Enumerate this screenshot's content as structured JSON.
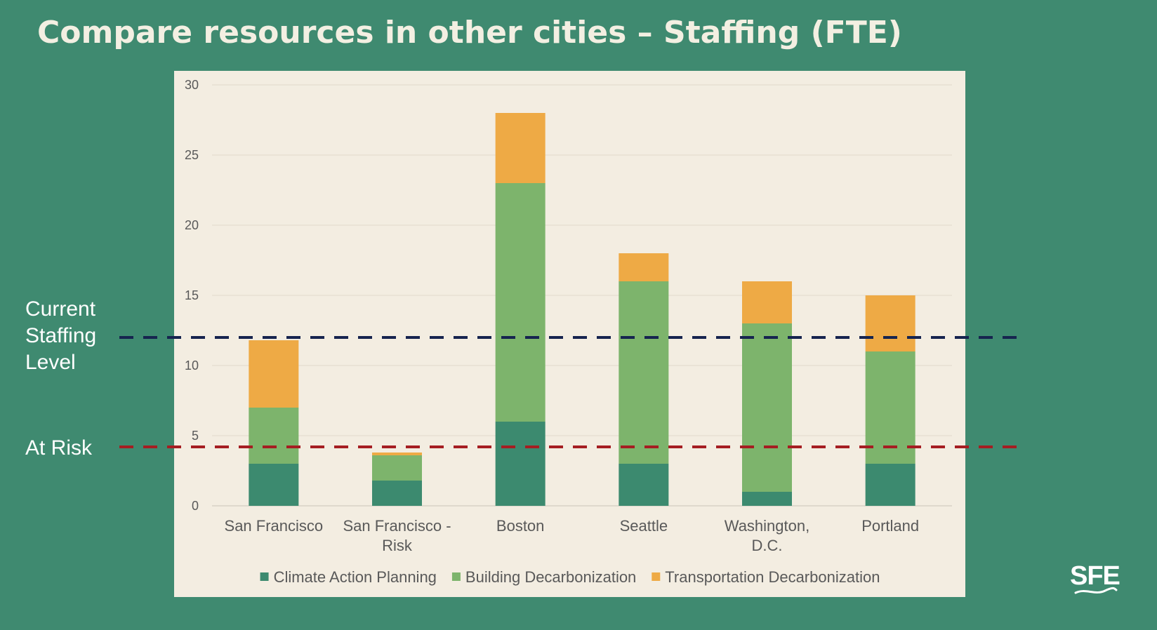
{
  "slide": {
    "title": "Compare resources in other cities – Staffing (FTE)",
    "logo_text": "SFE",
    "background_color": "#3f8a70"
  },
  "reference_lines": [
    {
      "id": "current",
      "label": "Current Staffing Level",
      "value": 12,
      "color": "#16244f"
    },
    {
      "id": "at-risk",
      "label": "At Risk",
      "value": 4.2,
      "color": "#a51e22"
    }
  ],
  "chart_data": {
    "type": "bar",
    "stacked": true,
    "title": "",
    "xlabel": "",
    "ylabel": "",
    "ylim": [
      0,
      30
    ],
    "yticks": [
      0,
      5,
      10,
      15,
      20,
      25,
      30
    ],
    "grid": true,
    "legend_position": "bottom",
    "plot_background": "#f3ede1",
    "categories": [
      [
        "San Francisco"
      ],
      [
        "San Francisco -",
        "Risk"
      ],
      [
        "Boston"
      ],
      [
        "Seattle"
      ],
      [
        "Washington,",
        "D.C."
      ],
      [
        "Portland"
      ]
    ],
    "series": [
      {
        "name": "Climate Action Planning",
        "color": "#3c8a6f",
        "values": [
          3,
          1.8,
          6,
          3,
          1,
          3
        ]
      },
      {
        "name": "Building Decarbonization",
        "color": "#7db46c",
        "values": [
          4,
          1.8,
          17,
          13,
          12,
          8
        ]
      },
      {
        "name": "Transportation Decarbonization",
        "color": "#eeaa45",
        "values": [
          4.8,
          0.2,
          5,
          2,
          3,
          4
        ]
      }
    ]
  }
}
